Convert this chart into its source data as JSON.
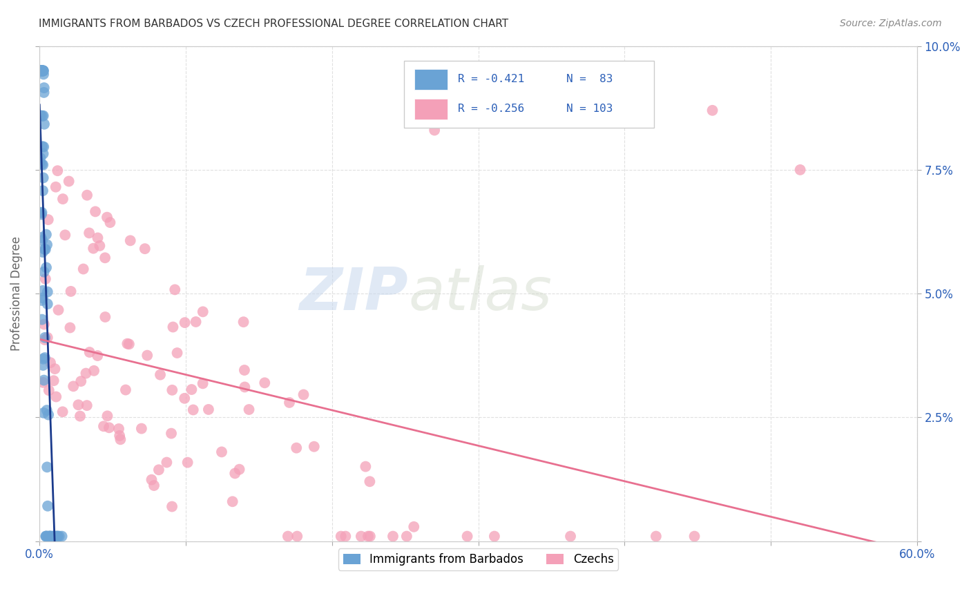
{
  "title": "IMMIGRANTS FROM BARBADOS VS CZECH PROFESSIONAL DEGREE CORRELATION CHART",
  "source": "Source: ZipAtlas.com",
  "ylabel": "Professional Degree",
  "xlim": [
    0.0,
    0.6
  ],
  "ylim": [
    0.0,
    0.1
  ],
  "legend_label_barbados": "Immigrants from Barbados",
  "legend_label_czechs": "Czechs",
  "legend_R_barbados": "R = -0.421",
  "legend_N_barbados": "N =  83",
  "legend_R_czechs": "R = -0.256",
  "legend_N_czechs": "N = 103",
  "barbados_color": "#6aa3d5",
  "czechs_color": "#f4a0b8",
  "barbados_line_color": "#1a3a8c",
  "czechs_line_color": "#e87090",
  "watermark_zip": "ZIP",
  "watermark_atlas": "atlas",
  "background_color": "#ffffff",
  "grid_color": "#dddddd",
  "title_color": "#333333",
  "axis_label_color": "#2b5fb8"
}
